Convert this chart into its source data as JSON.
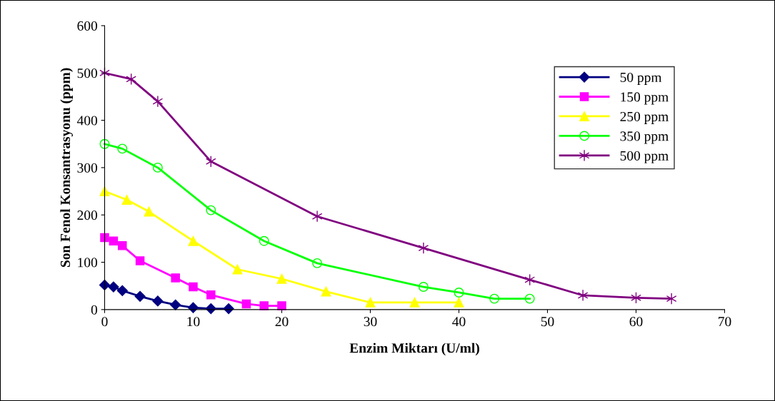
{
  "chart_data": {
    "type": "line",
    "xlabel": "Enzim Miktarı (U/ml)",
    "ylabel": "Son Fenol Konsantrasyonu (ppm)",
    "xlim": [
      0,
      70
    ],
    "xticks": [
      0,
      10,
      20,
      30,
      40,
      50,
      60,
      70
    ],
    "ylim": [
      0,
      600
    ],
    "yticks": [
      0,
      100,
      200,
      300,
      400,
      500,
      600
    ],
    "grid": false,
    "legend": "top right",
    "line_style": "solid",
    "series": [
      {
        "name": "50 ppm",
        "color": "#000080",
        "marker": "diamond",
        "x": [
          0,
          1,
          2,
          4,
          6,
          8,
          10,
          12,
          14
        ],
        "values": [
          52,
          48,
          40,
          28,
          18,
          10,
          4,
          2,
          2
        ]
      },
      {
        "name": "150 ppm",
        "color": "#ff00ff",
        "marker": "square",
        "x": [
          0,
          1,
          2,
          4,
          8,
          10,
          12,
          16,
          18,
          20
        ],
        "values": [
          152,
          145,
          135,
          103,
          67,
          48,
          31,
          12,
          8,
          8
        ]
      },
      {
        "name": "250 ppm",
        "color": "#ffff00",
        "marker": "triangle",
        "x": [
          0,
          2.5,
          5,
          10,
          15,
          20,
          25,
          30,
          35,
          40
        ],
        "values": [
          250,
          232,
          207,
          145,
          85,
          65,
          38,
          15,
          15,
          15
        ]
      },
      {
        "name": "350 ppm",
        "color": "#00ff00",
        "marker": "circle",
        "x": [
          0,
          2,
          6,
          12,
          18,
          24,
          36,
          40,
          44,
          48
        ],
        "values": [
          350,
          340,
          300,
          210,
          145,
          98,
          48,
          36,
          23,
          23
        ]
      },
      {
        "name": "500 ppm",
        "color": "#800080",
        "marker": "cross",
        "x": [
          0,
          3,
          6,
          12,
          24,
          36,
          48,
          54,
          60,
          64
        ],
        "values": [
          500,
          487,
          440,
          313,
          197,
          130,
          63,
          30,
          25,
          23
        ]
      }
    ]
  }
}
